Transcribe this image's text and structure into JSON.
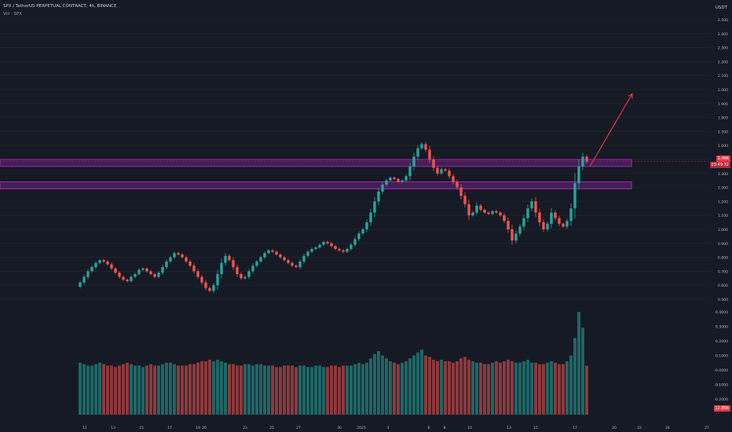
{
  "header": {
    "symbol_line": "SPX / TetherUS PERPETUAL CONTRACT, 4h, BINANCE",
    "volume_line": "Vol · SPX"
  },
  "price_axis": {
    "unit": "USDT",
    "last_price": "1.486",
    "countdown": "03:49:32",
    "volume_value": "12.856"
  },
  "colors": {
    "background": "#161a25",
    "up": "#26a69a",
    "down": "#ef5350",
    "zone": "#9c27b0",
    "arrow": "#f23645",
    "text": "#b2b5be"
  },
  "chart_data": {
    "type": "candlestick",
    "ylim": [
      0.5,
      2.5
    ],
    "price_ticks": [
      "2.500",
      "2.400",
      "2.300",
      "2.200",
      "2.100",
      "2.000",
      "1.900",
      "1.800",
      "1.700",
      "1.600",
      "1.500",
      "1.400",
      "1.300",
      "1.200",
      "1.100",
      "1.000",
      "0.900",
      "0.800",
      "0.700",
      "0.600",
      "0.500"
    ],
    "volume_ticks": [
      "0.4000",
      "0.3000",
      "0.2000",
      "0.1000",
      "-0.0000",
      "-0.1000",
      "-0.2000"
    ],
    "x_ticks": [
      "11",
      "13",
      "15",
      "17",
      "19",
      "20",
      "23",
      "25",
      "27",
      "30",
      "2025",
      "3",
      "6",
      "8",
      "10",
      "13",
      "15",
      "17",
      "20",
      "22",
      "24",
      "27"
    ],
    "zones": [
      {
        "low": 1.45,
        "high": 1.5
      },
      {
        "low": 1.29,
        "high": 1.34
      }
    ],
    "projection": {
      "from": 1.45,
      "to": 1.97
    },
    "close": [
      0.62,
      0.66,
      0.7,
      0.73,
      0.76,
      0.78,
      0.77,
      0.75,
      0.72,
      0.69,
      0.66,
      0.64,
      0.63,
      0.66,
      0.68,
      0.71,
      0.72,
      0.7,
      0.68,
      0.66,
      0.69,
      0.73,
      0.77,
      0.8,
      0.83,
      0.82,
      0.8,
      0.77,
      0.74,
      0.7,
      0.66,
      0.62,
      0.58,
      0.56,
      0.6,
      0.68,
      0.76,
      0.81,
      0.78,
      0.73,
      0.68,
      0.65,
      0.66,
      0.7,
      0.74,
      0.77,
      0.8,
      0.83,
      0.85,
      0.84,
      0.82,
      0.8,
      0.78,
      0.76,
      0.74,
      0.73,
      0.77,
      0.81,
      0.84,
      0.86,
      0.87,
      0.89,
      0.91,
      0.9,
      0.88,
      0.86,
      0.85,
      0.84,
      0.86,
      0.89,
      0.93,
      0.97,
      1.0,
      1.05,
      1.12,
      1.2,
      1.27,
      1.32,
      1.35,
      1.37,
      1.36,
      1.34,
      1.35,
      1.38,
      1.45,
      1.52,
      1.58,
      1.61,
      1.57,
      1.5,
      1.44,
      1.4,
      1.43,
      1.42,
      1.38,
      1.34,
      1.3,
      1.24,
      1.18,
      1.1,
      1.12,
      1.17,
      1.14,
      1.12,
      1.11,
      1.13,
      1.12,
      1.1,
      1.06,
      1.0,
      0.92,
      0.97,
      1.02,
      1.08,
      1.15,
      1.2,
      1.12,
      1.05,
      1.0,
      1.04,
      1.12,
      1.08,
      1.04,
      1.02,
      1.06,
      1.15,
      1.33,
      1.45,
      1.52,
      1.486
    ],
    "volume": [
      0.05,
      0.04,
      0.03,
      0.03,
      0.04,
      0.05,
      0.04,
      0.03,
      0.03,
      0.02,
      0.03,
      0.04,
      0.05,
      0.04,
      0.03,
      0.03,
      0.02,
      0.03,
      0.04,
      0.03,
      0.03,
      0.04,
      0.05,
      0.05,
      0.04,
      0.03,
      0.03,
      0.03,
      0.04,
      0.04,
      0.05,
      0.06,
      0.06,
      0.07,
      0.06,
      0.07,
      0.06,
      0.05,
      0.04,
      0.04,
      0.03,
      0.03,
      0.04,
      0.04,
      0.03,
      0.04,
      0.04,
      0.03,
      0.03,
      0.03,
      0.02,
      0.02,
      0.03,
      0.03,
      0.03,
      0.02,
      0.03,
      0.03,
      0.02,
      0.02,
      0.03,
      0.03,
      0.02,
      0.02,
      0.03,
      0.03,
      0.02,
      0.03,
      0.03,
      0.03,
      0.04,
      0.05,
      0.04,
      0.05,
      0.08,
      0.11,
      0.13,
      0.1,
      0.08,
      0.06,
      0.05,
      0.04,
      0.05,
      0.06,
      0.08,
      0.1,
      0.12,
      0.14,
      0.1,
      0.09,
      0.07,
      0.06,
      0.07,
      0.06,
      0.06,
      0.05,
      0.06,
      0.08,
      0.09,
      0.07,
      0.06,
      0.05,
      0.05,
      0.04,
      0.04,
      0.05,
      0.06,
      0.05,
      0.06,
      0.07,
      0.06,
      0.05,
      0.05,
      0.06,
      0.07,
      0.05,
      0.05,
      0.04,
      0.04,
      0.05,
      0.06,
      0.05,
      0.04,
      0.04,
      0.06,
      0.1,
      0.22,
      0.4,
      0.29,
      0.03
    ]
  }
}
